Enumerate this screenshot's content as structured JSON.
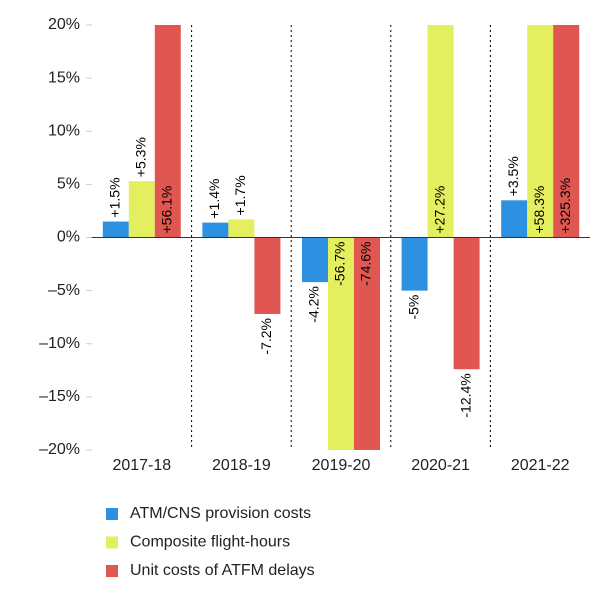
{
  "chart_data": {
    "type": "bar",
    "categories": [
      "2017-18",
      "2018-19",
      "2019-20",
      "2020-21",
      "2021-22"
    ],
    "series": [
      {
        "name": "ATM/CNS provision costs",
        "color": "#2e90e0",
        "values": [
          1.5,
          1.4,
          -4.2,
          -5,
          3.5
        ],
        "value_labels": [
          "+1.5%",
          "+1.4%",
          "-4.2%",
          "-5%",
          "+3.5%"
        ]
      },
      {
        "name": "Composite flight-hours",
        "color": "#e3ef5f",
        "values": [
          5.3,
          1.7,
          -56.7,
          27.2,
          58.3
        ],
        "value_labels": [
          "+5.3%",
          "+1.7%",
          "-56.7%",
          "+27.2%",
          "+58.3%"
        ]
      },
      {
        "name": "Unit costs of ATFM delays",
        "color": "#e05650",
        "values": [
          56.1,
          -7.2,
          -74.6,
          -12.4,
          325.3
        ],
        "value_labels": [
          "+56.1%",
          "-7.2%",
          "-74.6%",
          "-12.4%",
          "+325.3%"
        ]
      }
    ],
    "ylim": [
      -20,
      20
    ],
    "yticks": [
      {
        "value": -20,
        "label": "–20%"
      },
      {
        "value": -15,
        "label": "–15%"
      },
      {
        "value": -10,
        "label": "–10%"
      },
      {
        "value": -5,
        "label": "–5%"
      },
      {
        "value": 0,
        "label": "0%"
      },
      {
        "value": 5,
        "label": "5%"
      },
      {
        "value": 10,
        "label": "10%"
      },
      {
        "value": 15,
        "label": "15%"
      },
      {
        "value": 20,
        "label": "20%"
      }
    ],
    "legend": "bottom-left"
  }
}
